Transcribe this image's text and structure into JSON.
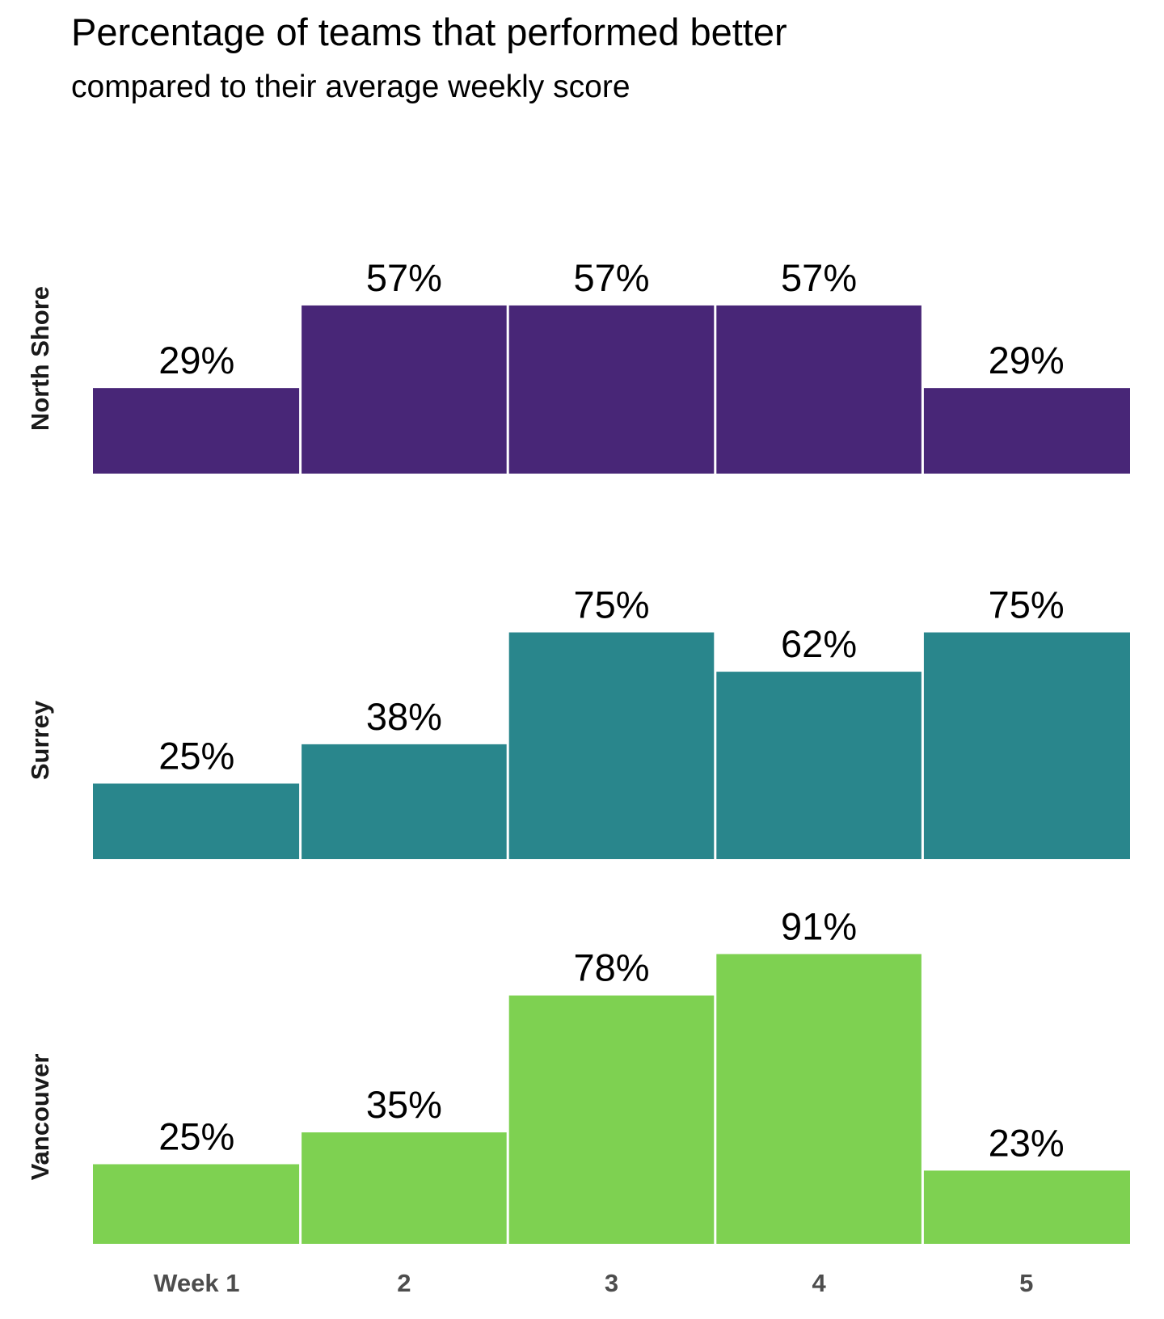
{
  "chart_data": {
    "type": "bar",
    "title": "Percentage of teams that performed better",
    "subtitle": "compared to their average weekly score",
    "categories": [
      "Week 1",
      "2",
      "3",
      "4",
      "5"
    ],
    "ylim": [
      0,
      100
    ],
    "grid": false,
    "legend": "none",
    "series": [
      {
        "name": "North Shore",
        "color": "#482677",
        "values": [
          29,
          57,
          57,
          57,
          29
        ],
        "labels": [
          "29%",
          "57%",
          "57%",
          "57%",
          "29%"
        ]
      },
      {
        "name": "Surrey",
        "color": "#29868C",
        "values": [
          25,
          38,
          75,
          62,
          75
        ],
        "labels": [
          "25%",
          "38%",
          "75%",
          "62%",
          "75%"
        ]
      },
      {
        "name": "Vancouver",
        "color": "#7ED151",
        "values": [
          25,
          35,
          78,
          91,
          23
        ],
        "labels": [
          "25%",
          "35%",
          "78%",
          "91%",
          "23%"
        ]
      }
    ]
  }
}
